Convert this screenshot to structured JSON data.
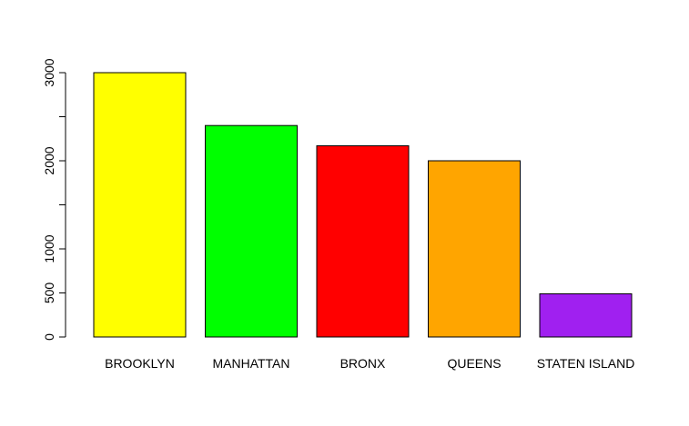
{
  "chart_data": {
    "type": "bar",
    "categories": [
      "BROOKLYN",
      "MANHATTAN",
      "BRONX",
      "QUEENS",
      "STATEN ISLAND"
    ],
    "values": [
      3000,
      2400,
      2170,
      2000,
      490
    ],
    "colors": [
      "#ffff00",
      "#00ff00",
      "#ff0000",
      "#ffa500",
      "#a020f0"
    ],
    "title": "",
    "xlabel": "",
    "ylabel": "",
    "ylim": [
      0,
      3000
    ],
    "yticks": [
      0,
      500,
      1000,
      1500,
      2000,
      2500,
      3000
    ],
    "ytick_labels": [
      "0",
      "500",
      "1000",
      "",
      "2000",
      "",
      "3000"
    ],
    "grid": false,
    "legend": "none"
  }
}
